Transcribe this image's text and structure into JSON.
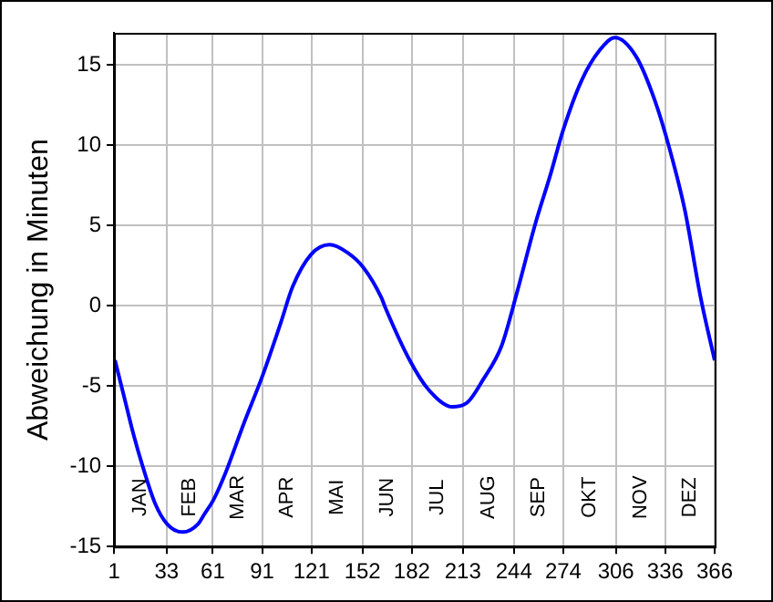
{
  "chart_data": {
    "type": "line",
    "ylabel": "Abweichung in Minuten",
    "x": [
      1.6,
      7.2,
      12.8,
      18.4,
      25.9,
      33.3,
      42.7,
      52,
      55.8,
      61.4,
      68.8,
      80,
      91.1,
      102.2,
      109.6,
      120.8,
      132,
      143,
      152.4,
      163.5,
      165.8,
      180.7,
      191.9,
      206.8,
      216,
      225.3,
      236.5,
      245.8,
      257,
      266.3,
      273.8,
      285,
      296,
      305.4,
      318.4,
      329.6,
      338.8,
      348,
      357.5,
      366
    ],
    "series": [
      {
        "color": "#0000ff",
        "values": [
          -3.4,
          -5.7,
          -8.0,
          -10.0,
          -12.3,
          -13.6,
          -14.1,
          -13.6,
          -13.0,
          -12.1,
          -10.4,
          -7.3,
          -4.4,
          -1.1,
          1.2,
          3.2,
          3.8,
          3.3,
          2.4,
          0.5,
          -0.1,
          -3.4,
          -5.2,
          -6.3,
          -6.0,
          -4.6,
          -2.5,
          0.8,
          5.1,
          8.2,
          10.9,
          14.0,
          15.9,
          16.7,
          15.5,
          12.8,
          9.7,
          5.9,
          0.5,
          -3.4
        ]
      }
    ],
    "xlim": [
      1,
      366
    ],
    "xticks": [
      1,
      33,
      61,
      91,
      121,
      152,
      182,
      213,
      244,
      274,
      306,
      336,
      366
    ],
    "ylim": [
      -15,
      17
    ],
    "yticks": [
      -15,
      -10,
      -5,
      0,
      5,
      10,
      15
    ],
    "grid": true,
    "legend": false,
    "marker": "none",
    "line_style": "solid",
    "annotations": [
      "JAN",
      "FEB",
      "MAR",
      "APR",
      "MAI",
      "JUN",
      "JUL",
      "AUG",
      "SEP",
      "OKT",
      "NOV",
      "DEZ"
    ]
  }
}
